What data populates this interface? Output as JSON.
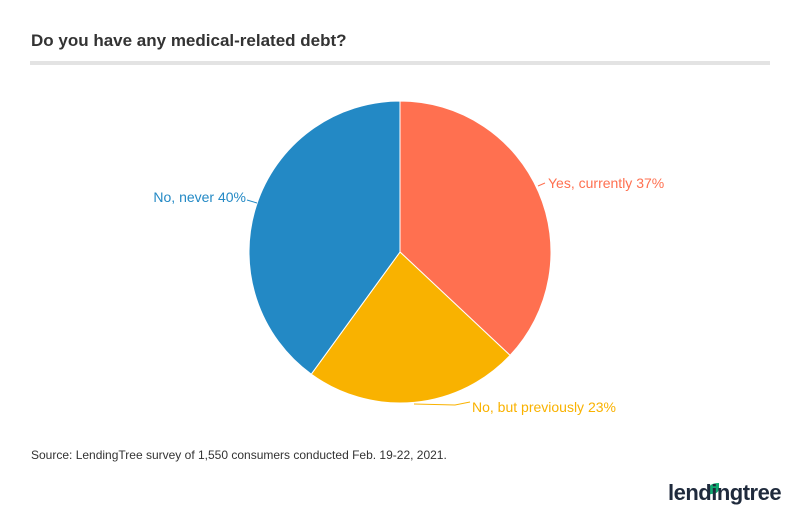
{
  "chart_data": {
    "type": "pie",
    "title": "Do you have any medical-related debt?",
    "slices": [
      {
        "label": "Yes, currently",
        "value": 37,
        "text": "Yes, currently 37%",
        "color": "#FF7050"
      },
      {
        "label": "No, but previously",
        "value": 23,
        "text": "No, but previously 23%",
        "color": "#F9B200"
      },
      {
        "label": "No, never",
        "value": 40,
        "text": "No, never 40%",
        "color": "#2389C5"
      }
    ]
  },
  "source": "Source: LendingTree survey of 1,550 consumers conducted Feb. 19-22, 2021.",
  "logo": "lendingtree"
}
